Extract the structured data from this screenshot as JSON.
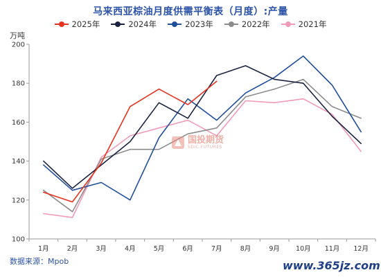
{
  "title": "马来西亚棕油月度供需平衡表（月度）:产量",
  "y_unit": "万吨",
  "source": "数据来源：Mpob",
  "watermark": {
    "cn": "国投期货",
    "en": "SDIC FUTURES"
  },
  "site_mark": "www.365jz.com",
  "chart_data": {
    "type": "line",
    "title": "马来西亚棕油月度供需平衡表（月度）:产量",
    "ylabel": "万吨",
    "xlabel": "",
    "categories": [
      "1月",
      "2月",
      "3月",
      "4月",
      "5月",
      "6月",
      "7月",
      "8月",
      "9月",
      "10月",
      "11月",
      "12月"
    ],
    "ylim": [
      100,
      200
    ],
    "yticks": [
      100,
      120,
      140,
      160,
      180,
      200
    ],
    "grid": false,
    "legend_position": "top",
    "series": [
      {
        "name": "2025年",
        "color": "#e8321e",
        "values": [
          124,
          119,
          139,
          168,
          177,
          169,
          181,
          null,
          null,
          null,
          null,
          null
        ]
      },
      {
        "name": "2024年",
        "color": "#1b2340",
        "values": [
          140,
          126,
          138,
          150,
          170,
          162,
          184,
          189,
          182,
          180,
          163,
          149
        ]
      },
      {
        "name": "2023年",
        "color": "#1f4e9c",
        "values": [
          138,
          125,
          129,
          120,
          152,
          172,
          161,
          175,
          183,
          194,
          179,
          155
        ]
      },
      {
        "name": "2022年",
        "color": "#8c8c8c",
        "values": [
          125,
          114,
          141,
          146,
          146,
          154,
          157,
          173,
          177,
          182,
          168,
          162
        ]
      },
      {
        "name": "2021年",
        "color": "#f29ab7",
        "values": [
          113,
          111,
          142,
          153,
          157,
          161,
          153,
          171,
          170,
          172,
          164,
          145
        ]
      }
    ]
  }
}
